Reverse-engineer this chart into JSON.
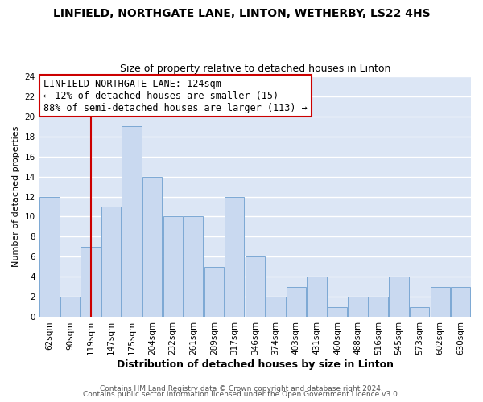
{
  "title": "LINFIELD, NORTHGATE LANE, LINTON, WETHERBY, LS22 4HS",
  "subtitle": "Size of property relative to detached houses in Linton",
  "xlabel": "Distribution of detached houses by size in Linton",
  "ylabel": "Number of detached properties",
  "categories": [
    "62sqm",
    "90sqm",
    "119sqm",
    "147sqm",
    "175sqm",
    "204sqm",
    "232sqm",
    "261sqm",
    "289sqm",
    "317sqm",
    "346sqm",
    "374sqm",
    "403sqm",
    "431sqm",
    "460sqm",
    "488sqm",
    "516sqm",
    "545sqm",
    "573sqm",
    "602sqm",
    "630sqm"
  ],
  "values": [
    12,
    2,
    7,
    11,
    19,
    14,
    10,
    10,
    5,
    12,
    6,
    2,
    3,
    4,
    1,
    2,
    2,
    4,
    1,
    3,
    3
  ],
  "bar_color": "#c9d9f0",
  "bar_edge_color": "#7ca8d4",
  "vline_x_index": 2,
  "vline_color": "#cc0000",
  "annotation_text": "LINFIELD NORTHGATE LANE: 124sqm\n← 12% of detached houses are smaller (15)\n88% of semi-detached houses are larger (113) →",
  "annotation_box_edgecolor": "#cc0000",
  "annotation_fontsize": 8.5,
  "ylim": [
    0,
    24
  ],
  "yticks": [
    0,
    2,
    4,
    6,
    8,
    10,
    12,
    14,
    16,
    18,
    20,
    22,
    24
  ],
  "grid_color": "#ffffff",
  "plot_bg_color": "#dce6f5",
  "fig_bg_color": "#ffffff",
  "footer_line1": "Contains HM Land Registry data © Crown copyright and database right 2024.",
  "footer_line2": "Contains public sector information licensed under the Open Government Licence v3.0.",
  "title_fontsize": 10,
  "subtitle_fontsize": 9,
  "xlabel_fontsize": 9,
  "ylabel_fontsize": 8,
  "tick_fontsize": 7.5,
  "footer_fontsize": 6.5
}
